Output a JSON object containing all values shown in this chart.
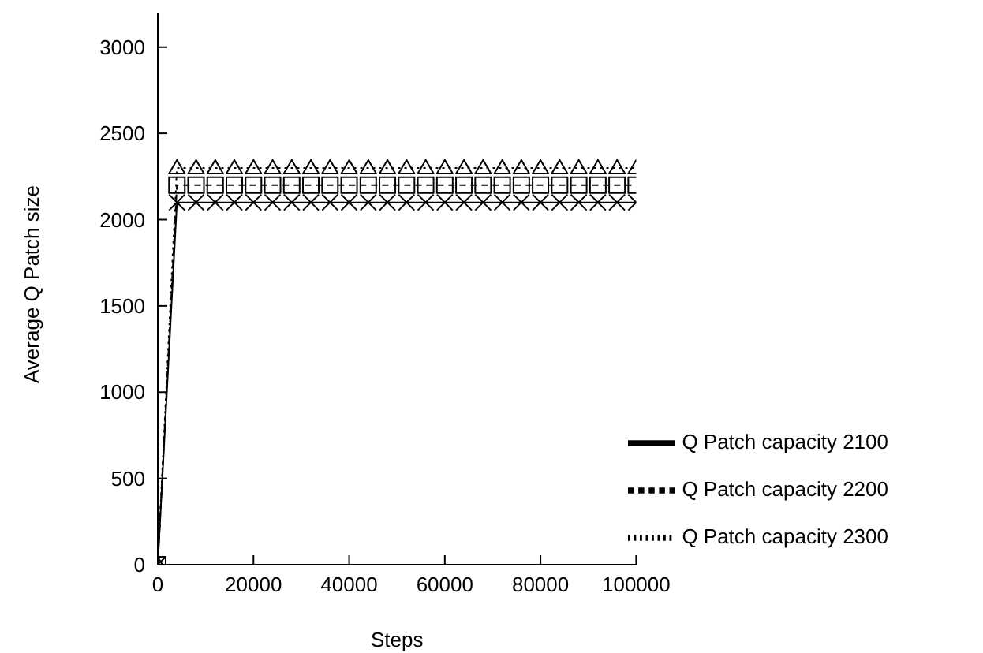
{
  "chart_data": {
    "type": "line",
    "xlabel": "Steps",
    "ylabel": "Average Q Patch size",
    "x": [
      0,
      4000,
      8000,
      12000,
      16000,
      20000,
      24000,
      28000,
      32000,
      36000,
      40000,
      44000,
      48000,
      52000,
      56000,
      60000,
      64000,
      68000,
      72000,
      76000,
      80000,
      84000,
      88000,
      92000,
      96000,
      100000
    ],
    "series": [
      {
        "name": "Q Patch capacity 2100",
        "color": "#000000",
        "marker": "cross",
        "line_style": "solid",
        "values": [
          0,
          2100,
          2100,
          2100,
          2100,
          2100,
          2100,
          2100,
          2100,
          2100,
          2100,
          2100,
          2100,
          2100,
          2100,
          2100,
          2100,
          2100,
          2100,
          2100,
          2100,
          2100,
          2100,
          2100,
          2100,
          2100
        ]
      },
      {
        "name": "Q Patch capacity 2200",
        "color": "#000000",
        "marker": "square",
        "line_style": "dashed",
        "values": [
          0,
          2200,
          2200,
          2200,
          2200,
          2200,
          2200,
          2200,
          2200,
          2200,
          2200,
          2200,
          2200,
          2200,
          2200,
          2200,
          2200,
          2200,
          2200,
          2200,
          2200,
          2200,
          2200,
          2200,
          2200,
          2200
        ]
      },
      {
        "name": "Q Patch capacity 2300",
        "color": "#000000",
        "marker": "triangle",
        "line_style": "dotted",
        "values": [
          0,
          2300,
          2300,
          2300,
          2300,
          2300,
          2300,
          2300,
          2300,
          2300,
          2300,
          2300,
          2300,
          2300,
          2300,
          2300,
          2300,
          2300,
          2300,
          2300,
          2300,
          2300,
          2300,
          2300,
          2300,
          2300
        ]
      }
    ],
    "xlim": [
      0,
      100000
    ],
    "xticks": [
      0,
      20000,
      40000,
      60000,
      80000,
      100000
    ],
    "ylim": [
      0,
      3200
    ],
    "yticks": [
      0,
      500,
      1000,
      1500,
      2000,
      2500,
      3000
    ],
    "grid": false,
    "legend": "bottom right"
  }
}
